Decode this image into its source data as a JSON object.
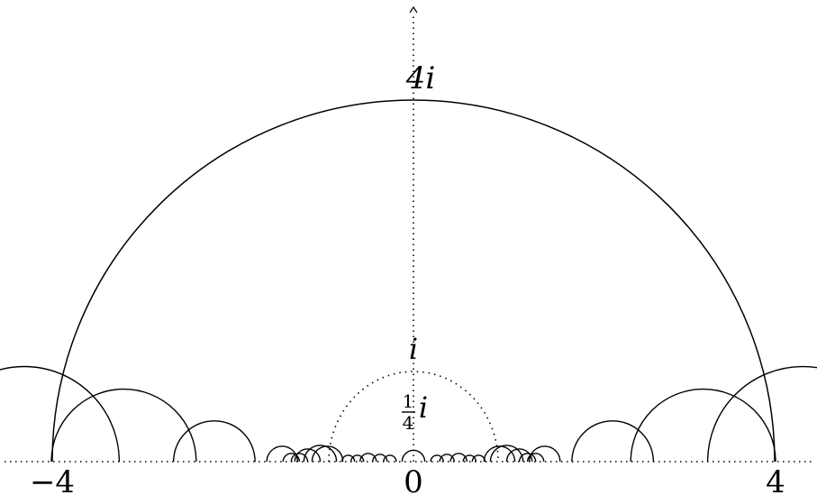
{
  "labels": {
    "top": "4i",
    "mid": "i",
    "quarter_num": "1",
    "quarter_den": "4",
    "quarter_i": "i",
    "x_left": "−4",
    "x_zero": "0",
    "x_right": "4"
  },
  "diagram": {
    "axes": {
      "x": [
        -4.5,
        4.5
      ],
      "y": [
        0,
        5
      ]
    },
    "big_circle": {
      "center": 0,
      "radius": 4
    },
    "unit_circle_dotted": {
      "center": 0,
      "radius": 1
    },
    "arcs": [
      {
        "c": -4.3,
        "r": 1.05
      },
      {
        "c": -3.2,
        "r": 0.8
      },
      {
        "c": -2.2,
        "r": 0.45
      },
      {
        "c": -1.45,
        "r": 0.17
      },
      {
        "c": -1.35,
        "r": 0.09
      },
      {
        "c": -1.26,
        "r": 0.09
      },
      {
        "c": -1.17,
        "r": 0.14
      },
      {
        "c": -1.03,
        "r": 0.18
      },
      {
        "c": -0.95,
        "r": 0.17
      },
      {
        "c": -0.72,
        "r": 0.07
      },
      {
        "c": -0.62,
        "r": 0.07
      },
      {
        "c": -0.5,
        "r": 0.09
      },
      {
        "c": -0.37,
        "r": 0.08
      },
      {
        "c": -0.26,
        "r": 0.07
      },
      {
        "c": 0,
        "r": 0.125
      },
      {
        "c": 0.26,
        "r": 0.07
      },
      {
        "c": 0.37,
        "r": 0.08
      },
      {
        "c": 0.5,
        "r": 0.09
      },
      {
        "c": 0.62,
        "r": 0.07
      },
      {
        "c": 0.72,
        "r": 0.07
      },
      {
        "c": 0.95,
        "r": 0.17
      },
      {
        "c": 1.03,
        "r": 0.18
      },
      {
        "c": 1.17,
        "r": 0.14
      },
      {
        "c": 1.26,
        "r": 0.09
      },
      {
        "c": 1.35,
        "r": 0.09
      },
      {
        "c": 1.45,
        "r": 0.17
      },
      {
        "c": 2.2,
        "r": 0.45
      },
      {
        "c": 3.2,
        "r": 0.8
      },
      {
        "c": 4.3,
        "r": 1.05
      }
    ]
  }
}
